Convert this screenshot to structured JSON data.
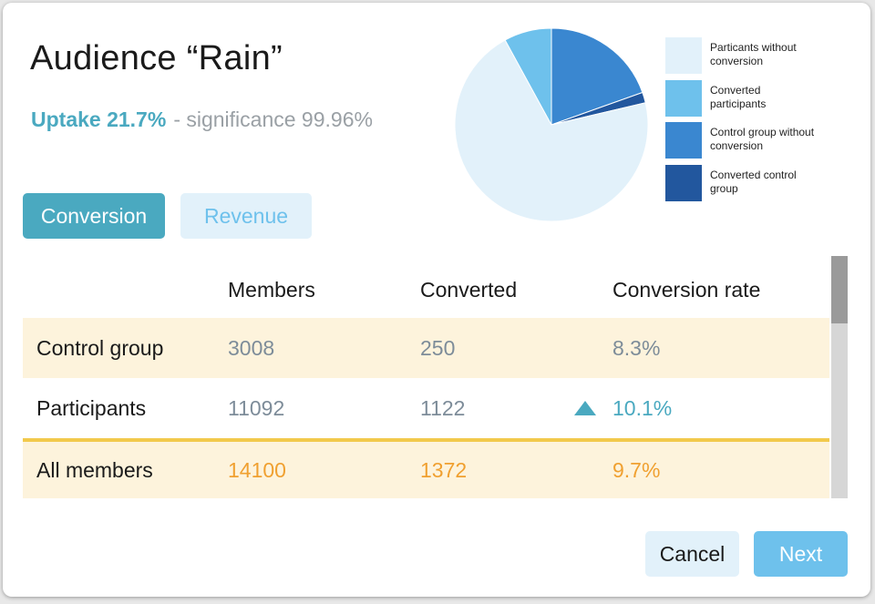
{
  "header": {
    "title": "Audience “Rain”",
    "uptake_label": "Uptake 21.7%",
    "significance_text": "- significance 99.96%"
  },
  "tabs": [
    {
      "label": "Conversion",
      "active": true
    },
    {
      "label": "Revenue",
      "active": false
    }
  ],
  "chart_data": {
    "type": "pie",
    "slices": [
      {
        "label": "Particants without conversion",
        "value": 9970,
        "color": "#e2f1fa"
      },
      {
        "label": "Converted participants",
        "value": 1122,
        "color": "#6ec1ec"
      },
      {
        "label": "Control group without conversion",
        "value": 2758,
        "color": "#3a87d0"
      },
      {
        "label": "Converted control group",
        "value": 250,
        "color": "#22579e"
      }
    ]
  },
  "legend": [
    {
      "label": "Particants without conversion",
      "color": "#e2f1fa"
    },
    {
      "label": "Converted participants",
      "color": "#6ec1ec"
    },
    {
      "label": "Control group without conversion",
      "color": "#3a87d0"
    },
    {
      "label": "Converted control group",
      "color": "#22579e"
    }
  ],
  "table": {
    "columns": [
      "Members",
      "Converted",
      "Conversion rate"
    ],
    "rows": [
      {
        "label": "Control group",
        "members": "3008",
        "converted": "250",
        "rate": "8.3%"
      },
      {
        "label": "Participants",
        "members": "11092",
        "converted": "1122",
        "rate": "10.1%",
        "indicator": "triangle-up-icon"
      },
      {
        "label": "All members",
        "members": "14100",
        "converted": "1372",
        "rate": "9.7%"
      }
    ]
  },
  "footer": {
    "cancel_label": "Cancel",
    "next_label": "Next"
  },
  "colors": {
    "accent": "#4aa9c0",
    "light_blue": "#6ec1ec",
    "highlight_row": "#fdf3dc",
    "total_border": "#f2c94c",
    "total_text": "#f0a030"
  }
}
